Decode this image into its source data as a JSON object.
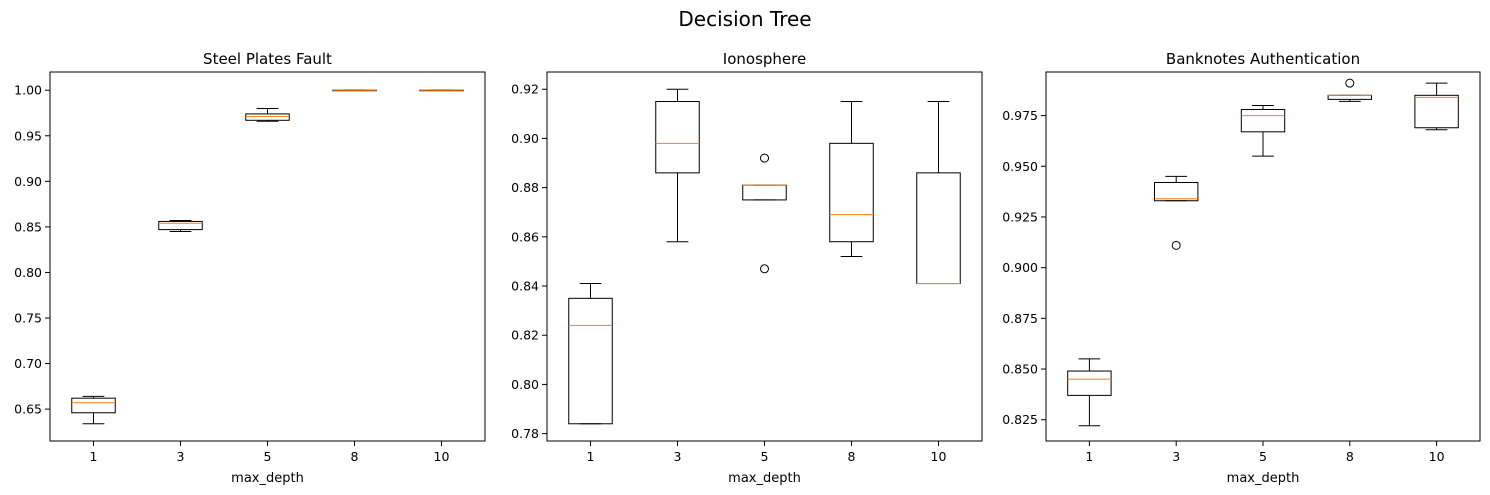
{
  "figure": {
    "title": "Decision Tree"
  },
  "colors": {
    "box": "#000000",
    "median": "#ff7f0e",
    "background": "#ffffff"
  },
  "chart_data": [
    {
      "type": "box",
      "title": "Steel Plates Fault",
      "xlabel": "max_depth",
      "ylabel": "",
      "categories": [
        "1",
        "3",
        "5",
        "8",
        "10"
      ],
      "ylim": [
        0.615,
        1.02
      ],
      "yticks": [
        0.65,
        0.7,
        0.75,
        0.8,
        0.85,
        0.9,
        0.95,
        1.0
      ],
      "ytick_labels": [
        "0.65",
        "0.70",
        "0.75",
        "0.80",
        "0.85",
        "0.90",
        "0.95",
        "1.00"
      ],
      "boxes": [
        {
          "whislo": 0.634,
          "q1": 0.646,
          "med": 0.657,
          "q3": 0.662,
          "whishi": 0.664,
          "fliers": []
        },
        {
          "whislo": 0.845,
          "q1": 0.847,
          "med": 0.854,
          "q3": 0.856,
          "whishi": 0.857,
          "fliers": []
        },
        {
          "whislo": 0.966,
          "q1": 0.967,
          "med": 0.971,
          "q3": 0.974,
          "whishi": 0.98,
          "fliers": []
        },
        {
          "whislo": 1.0,
          "q1": 1.0,
          "med": 1.0,
          "q3": 1.0,
          "whishi": 1.0,
          "fliers": []
        },
        {
          "whislo": 1.0,
          "q1": 1.0,
          "med": 1.0,
          "q3": 1.0,
          "whishi": 1.0,
          "fliers": []
        }
      ]
    },
    {
      "type": "box",
      "title": "Ionosphere",
      "xlabel": "max_depth",
      "ylabel": "",
      "categories": [
        "1",
        "3",
        "5",
        "8",
        "10"
      ],
      "ylim": [
        0.777,
        0.927
      ],
      "yticks": [
        0.78,
        0.8,
        0.82,
        0.84,
        0.86,
        0.88,
        0.9,
        0.92
      ],
      "ytick_labels": [
        "0.78",
        "0.80",
        "0.82",
        "0.84",
        "0.86",
        "0.88",
        "0.90",
        "0.92"
      ],
      "boxes": [
        {
          "whislo": 0.784,
          "q1": 0.784,
          "med": 0.824,
          "q3": 0.835,
          "whishi": 0.841,
          "fliers": []
        },
        {
          "whislo": 0.858,
          "q1": 0.886,
          "med": 0.898,
          "q3": 0.915,
          "whishi": 0.92,
          "fliers": []
        },
        {
          "whislo": 0.875,
          "q1": 0.875,
          "med": 0.881,
          "q3": 0.881,
          "whishi": 0.881,
          "fliers": [
            0.892,
            0.847
          ]
        },
        {
          "whislo": 0.852,
          "q1": 0.858,
          "med": 0.869,
          "q3": 0.898,
          "whishi": 0.915,
          "fliers": []
        },
        {
          "whislo": 0.841,
          "q1": 0.841,
          "med": 0.841,
          "q3": 0.886,
          "whishi": 0.915,
          "fliers": []
        }
      ]
    },
    {
      "type": "box",
      "title": "Banknotes Authentication",
      "xlabel": "max_depth",
      "ylabel": "",
      "categories": [
        "1",
        "3",
        "5",
        "8",
        "10"
      ],
      "ylim": [
        0.8145,
        0.9965
      ],
      "yticks": [
        0.825,
        0.85,
        0.875,
        0.9,
        0.925,
        0.95,
        0.975
      ],
      "ytick_labels": [
        "0.825",
        "0.850",
        "0.875",
        "0.900",
        "0.925",
        "0.950",
        "0.975"
      ],
      "boxes": [
        {
          "whislo": 0.822,
          "q1": 0.837,
          "med": 0.845,
          "q3": 0.849,
          "whishi": 0.855,
          "fliers": []
        },
        {
          "whislo": 0.933,
          "q1": 0.933,
          "med": 0.934,
          "q3": 0.942,
          "whishi": 0.945,
          "fliers": [
            0.911
          ]
        },
        {
          "whislo": 0.955,
          "q1": 0.967,
          "med": 0.975,
          "q3": 0.978,
          "whishi": 0.98,
          "fliers": []
        },
        {
          "whislo": 0.982,
          "q1": 0.983,
          "med": 0.985,
          "q3": 0.985,
          "whishi": 0.985,
          "fliers": [
            0.991
          ]
        },
        {
          "whislo": 0.968,
          "q1": 0.969,
          "med": 0.984,
          "q3": 0.985,
          "whishi": 0.991,
          "fliers": []
        }
      ]
    }
  ]
}
